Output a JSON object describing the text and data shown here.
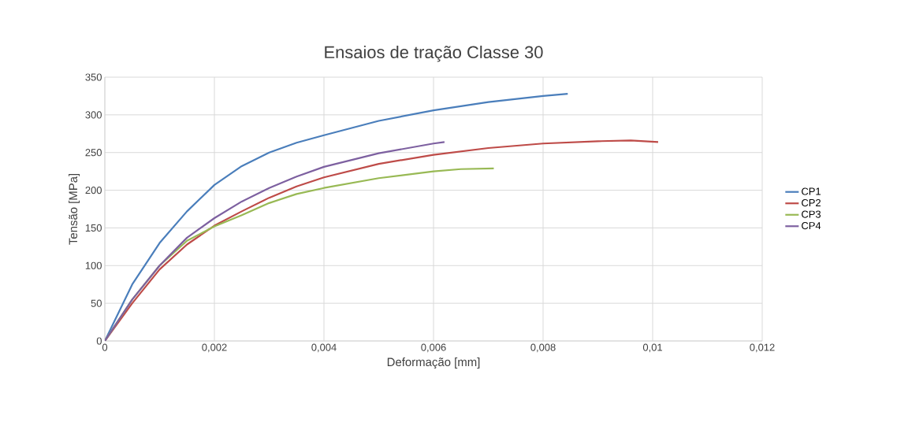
{
  "chart_data": {
    "type": "line",
    "title": "Ensaios de tração Classe 30",
    "xlabel": "Deformação [mm]",
    "ylabel": "Tensão [MPa]",
    "xlim": [
      0,
      0.012
    ],
    "ylim": [
      0,
      350
    ],
    "xticks": [
      0,
      {
        "value": 0.002,
        "label": "0,002"
      },
      {
        "value": 0.004,
        "label": "0,004"
      },
      {
        "value": 0.006,
        "label": "0,006"
      },
      {
        "value": 0.008,
        "label": "0,008"
      },
      {
        "value": 0.01,
        "label": "0,01"
      },
      {
        "value": 0.012,
        "label": "0,012"
      }
    ],
    "yticks": [
      0,
      50,
      100,
      150,
      200,
      250,
      300,
      350
    ],
    "grid": true,
    "legend": "right",
    "marker": "none",
    "line_style": "solid",
    "series": [
      {
        "name": "CP1",
        "color": "#4a7ebb",
        "x": [
          0,
          0.0005,
          0.001,
          0.0015,
          0.002,
          0.0025,
          0.003,
          0.0035,
          0.004,
          0.005,
          0.006,
          0.007,
          0.008,
          0.00845
        ],
        "values": [
          0,
          75,
          130,
          172,
          207,
          232,
          250,
          263,
          273,
          292,
          306,
          317,
          325,
          328
        ]
      },
      {
        "name": "CP2",
        "color": "#be4b48",
        "x": [
          0,
          0.0005,
          0.001,
          0.0015,
          0.002,
          0.0025,
          0.003,
          0.0035,
          0.004,
          0.005,
          0.006,
          0.007,
          0.008,
          0.009,
          0.0096,
          0.0101
        ],
        "values": [
          0,
          50,
          95,
          128,
          153,
          172,
          190,
          205,
          217,
          235,
          247,
          256,
          262,
          265,
          266,
          264
        ]
      },
      {
        "name": "CP3",
        "color": "#98b954",
        "x": [
          0,
          0.0005,
          0.001,
          0.0015,
          0.002,
          0.0025,
          0.003,
          0.0035,
          0.004,
          0.005,
          0.006,
          0.0065,
          0.0071
        ],
        "values": [
          0,
          55,
          100,
          133,
          152,
          167,
          183,
          195,
          203,
          216,
          225,
          228,
          229
        ]
      },
      {
        "name": "CP4",
        "color": "#7d60a0",
        "x": [
          0,
          0.0005,
          0.001,
          0.0015,
          0.002,
          0.0025,
          0.003,
          0.0035,
          0.004,
          0.005,
          0.006,
          0.0062
        ],
        "values": [
          0,
          55,
          100,
          137,
          163,
          185,
          203,
          218,
          231,
          249,
          262,
          264
        ]
      }
    ]
  }
}
